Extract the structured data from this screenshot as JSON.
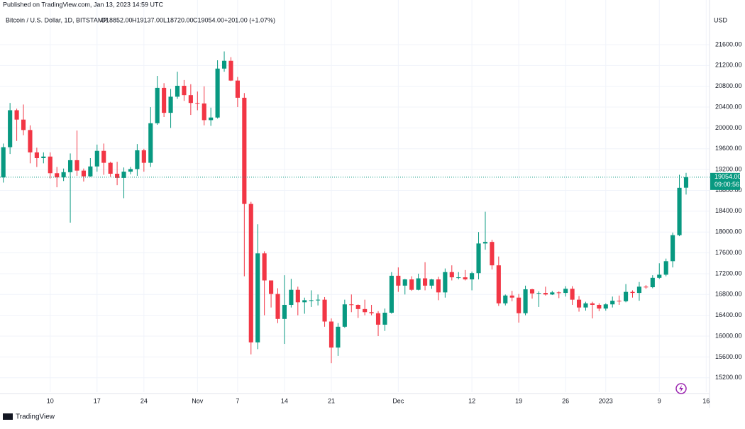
{
  "header": {
    "published": "Published on TradingView.com, Jan 13, 2023 14:59 UTC",
    "symbol": "Bitcoin / U.S. Dollar, 1D, BITSTAMP",
    "ohlc_legend": [
      "O18852.00",
      "H19137.00",
      "L18720.00",
      "C19054.00",
      "+201.00 (+1.07%)"
    ],
    "currency": "USD",
    "countdown": "09:00:56",
    "footer": "TradingView"
  },
  "chart_data": {
    "type": "candlestick",
    "up_color": "#089981",
    "down_color": "#f23645",
    "last_price": {
      "value": 19054,
      "label": "19054.00"
    },
    "xlim": [
      -0.5,
      105.5
    ],
    "xticks": [
      {
        "value": 7,
        "label": "10"
      },
      {
        "value": 14,
        "label": "17"
      },
      {
        "value": 21,
        "label": "24"
      },
      {
        "value": 29,
        "label": "Nov"
      },
      {
        "value": 35,
        "label": "7"
      },
      {
        "value": 42,
        "label": "14"
      },
      {
        "value": 49,
        "label": "21"
      },
      {
        "value": 59,
        "label": "Dec"
      },
      {
        "value": 70,
        "label": "12"
      },
      {
        "value": 77,
        "label": "19"
      },
      {
        "value": 84,
        "label": "26"
      },
      {
        "value": 90,
        "label": "2023"
      },
      {
        "value": 98,
        "label": "9"
      },
      {
        "value": 105,
        "label": "16"
      }
    ],
    "ylim": [
      14924,
      22458
    ],
    "yticks": [
      {
        "value": 15200,
        "label": "15200.00"
      },
      {
        "value": 15600,
        "label": "15600.00"
      },
      {
        "value": 16000,
        "label": "16000.00"
      },
      {
        "value": 16400,
        "label": "16400.00"
      },
      {
        "value": 16800,
        "label": "16800.00"
      },
      {
        "value": 17200,
        "label": "17200.00"
      },
      {
        "value": 17600,
        "label": "17600.00"
      },
      {
        "value": 18000,
        "label": "18000.00"
      },
      {
        "value": 18400,
        "label": "18400.00"
      },
      {
        "value": 18800,
        "label": "18800.00"
      },
      {
        "value": 19200,
        "label": "19200.00"
      },
      {
        "value": 19600,
        "label": "19600.00"
      },
      {
        "value": 20000,
        "label": "20000.00"
      },
      {
        "value": 20400,
        "label": "20400.00"
      },
      {
        "value": 20800,
        "label": "20800.00"
      },
      {
        "value": 21200,
        "label": "21200.00"
      },
      {
        "value": 21600,
        "label": "21600.00"
      }
    ],
    "grid": true,
    "x": [
      0,
      1,
      2,
      3,
      4,
      5,
      6,
      7,
      8,
      9,
      10,
      11,
      12,
      13,
      14,
      15,
      16,
      17,
      18,
      19,
      20,
      21,
      22,
      23,
      24,
      25,
      26,
      27,
      28,
      29,
      30,
      31,
      32,
      33,
      34,
      35,
      36,
      37,
      38,
      39,
      40,
      41,
      42,
      43,
      44,
      45,
      46,
      47,
      48,
      49,
      50,
      51,
      52,
      53,
      54,
      55,
      56,
      57,
      58,
      59,
      60,
      61,
      62,
      63,
      64,
      65,
      66,
      67,
      68,
      69,
      70,
      71,
      72,
      73,
      74,
      75,
      76,
      77,
      78,
      79,
      80,
      81,
      82,
      83,
      84,
      85,
      86,
      87,
      88,
      89,
      90,
      91,
      92,
      93,
      94,
      95,
      96,
      97,
      98,
      99,
      100,
      101,
      102
    ],
    "open": [
      19050,
      19630,
      20340,
      20160,
      19960,
      19530,
      19420,
      19450,
      19130,
      19050,
      19150,
      19380,
      19180,
      19070,
      19260,
      19560,
      19330,
      19120,
      19040,
      19160,
      19210,
      19570,
      19330,
      20090,
      20770,
      20290,
      20600,
      20810,
      20630,
      20480,
      20470,
      20150,
      20200,
      21140,
      21290,
      20910,
      20580,
      18540,
      15880,
      17590,
      17070,
      16810,
      16330,
      16600,
      16890,
      16650,
      16690,
      16690,
      16700,
      16280,
      15780,
      16180,
      16610,
      16600,
      16520,
      16460,
      16440,
      16220,
      16450,
      17160,
      16970,
      17090,
      16890,
      17110,
      16970,
      17090,
      16840,
      17230,
      17130,
      17130,
      17090,
      17210,
      17780,
      17810,
      17360,
      16630,
      16780,
      16740,
      16440,
      16900,
      16820,
      16830,
      16800,
      16840,
      16830,
      16910,
      16700,
      16550,
      16630,
      16600,
      16530,
      16610,
      16680,
      16670,
      16850,
      16830,
      16950,
      16940,
      17120,
      17180,
      17440,
      17940,
      18852
    ],
    "high": [
      19700,
      20480,
      20370,
      20450,
      20050,
      19620,
      19530,
      19530,
      19250,
      19220,
      19510,
      19950,
      19220,
      19420,
      19680,
      19700,
      19350,
      19350,
      19240,
      19250,
      19690,
      19600,
      20400,
      21000,
      20860,
      20750,
      21080,
      20920,
      20840,
      20700,
      20800,
      20390,
      21300,
      21470,
      21360,
      20980,
      20670,
      18580,
      18150,
      17630,
      17070,
      16920,
      17170,
      17100,
      16950,
      16740,
      16880,
      16800,
      16750,
      16340,
      16250,
      16700,
      16800,
      16610,
      16700,
      16600,
      16480,
      16530,
      17230,
      17320,
      17100,
      17150,
      17200,
      17420,
      17100,
      17140,
      17300,
      17360,
      17230,
      17270,
      17240,
      18000,
      18390,
      17850,
      17530,
      16800,
      16870,
      16810,
      16970,
      16910,
      16860,
      16950,
      16870,
      16860,
      16960,
      16960,
      16770,
      16660,
      16660,
      16630,
      16630,
      16760,
      16780,
      17000,
      16880,
      17040,
      16980,
      17170,
      17400,
      17490,
      17990,
      19100,
      19137
    ],
    "low": [
      18950,
      19500,
      19750,
      19860,
      19320,
      19250,
      19320,
      19030,
      18860,
      18980,
      18180,
      19080,
      18970,
      19060,
      19160,
      19100,
      19060,
      18900,
      18650,
      19110,
      19080,
      19160,
      19250,
      20060,
      20210,
      20000,
      20560,
      20520,
      20250,
      20340,
      20050,
      20040,
      20180,
      21080,
      20900,
      20400,
      17150,
      15650,
      15750,
      16400,
      16550,
      16250,
      15850,
      16550,
      16400,
      16430,
      16560,
      16590,
      16180,
      15480,
      15620,
      16160,
      16460,
      16350,
      16400,
      16400,
      16000,
      16100,
      16430,
      16850,
      16800,
      16870,
      16880,
      16880,
      16910,
      16690,
      16740,
      17070,
      17090,
      17070,
      16880,
      17090,
      17660,
      17280,
      16580,
      16590,
      16670,
      16260,
      16400,
      16720,
      16560,
      16780,
      16790,
      16730,
      16760,
      16600,
      16470,
      16490,
      16340,
      16480,
      16490,
      16550,
      16600,
      16650,
      16740,
      16680,
      16910,
      16920,
      17100,
      17150,
      17320,
      17920,
      18720
    ],
    "close": [
      19630,
      20340,
      20160,
      19960,
      19530,
      19420,
      19450,
      19130,
      19050,
      19150,
      19380,
      19180,
      19070,
      19260,
      19560,
      19330,
      19120,
      19040,
      19160,
      19210,
      19570,
      19330,
      20090,
      20770,
      20290,
      20600,
      20810,
      20630,
      20480,
      20470,
      20150,
      20200,
      21140,
      21290,
      20910,
      20580,
      18540,
      15880,
      17590,
      17070,
      16810,
      16330,
      16600,
      16890,
      16650,
      16690,
      16690,
      16700,
      16280,
      15780,
      16180,
      16610,
      16600,
      16520,
      16460,
      16440,
      16220,
      16450,
      17160,
      16970,
      17090,
      16890,
      17110,
      16970,
      17090,
      16840,
      17230,
      17130,
      17130,
      17090,
      17210,
      17780,
      17810,
      17360,
      16630,
      16780,
      16740,
      16440,
      16900,
      16820,
      16830,
      16800,
      16840,
      16830,
      16910,
      16700,
      16550,
      16630,
      16600,
      16530,
      16610,
      16680,
      16670,
      16850,
      16830,
      16950,
      16940,
      17120,
      17180,
      17440,
      17940,
      18850,
      19054
    ]
  }
}
